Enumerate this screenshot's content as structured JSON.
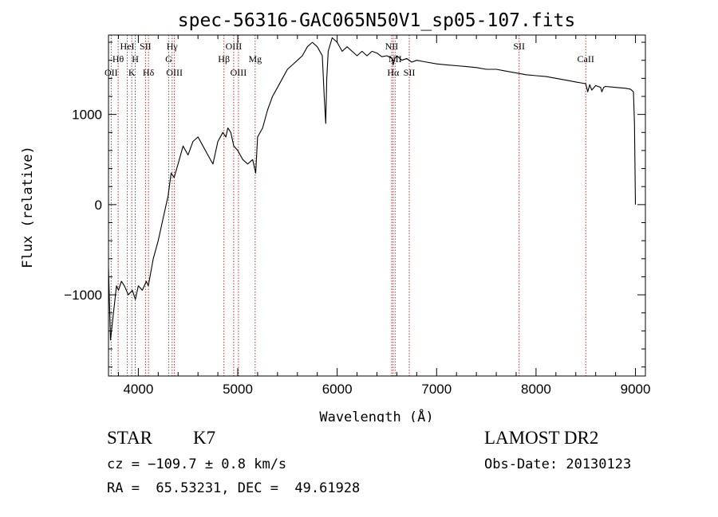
{
  "chart_data": {
    "type": "line",
    "title": "spec-56316-GAC065N50V1_sp05-107.fits",
    "xlabel": "Wavelength (Å)",
    "ylabel": "Flux (relative)",
    "xlim": [
      3700,
      9100
    ],
    "ylim": [
      -1900,
      1880
    ],
    "xticks": [
      4000,
      5000,
      6000,
      7000,
      8000,
      9000
    ],
    "yticks": [
      -1000,
      0,
      1000
    ],
    "grid": false,
    "series": [
      {
        "x": [
          3700,
          3720,
          3740,
          3760,
          3780,
          3800,
          3830,
          3860,
          3900,
          3940,
          3970,
          4000,
          4040,
          4080,
          4100,
          4150,
          4200,
          4250,
          4300,
          4330,
          4360,
          4400,
          4450,
          4500,
          4550,
          4600,
          4650,
          4700,
          4750,
          4800,
          4850,
          4880,
          4900,
          4930,
          4960,
          5000,
          5050,
          5100,
          5150,
          5180,
          5200,
          5250,
          5300,
          5350,
          5400,
          5450,
          5500,
          5550,
          5600,
          5650,
          5700,
          5750,
          5800,
          5850,
          5870,
          5885,
          5895,
          5910,
          5950,
          6000,
          6050,
          6100,
          6150,
          6200,
          6250,
          6300,
          6350,
          6400,
          6450,
          6500,
          6550,
          6563,
          6580,
          6600,
          6650,
          6700,
          6750,
          6800,
          6900,
          7000,
          7100,
          7200,
          7300,
          7400,
          7500,
          7600,
          7700,
          7800,
          7900,
          8000,
          8100,
          8200,
          8300,
          8400,
          8450,
          8500,
          8520,
          8540,
          8560,
          8600,
          8650,
          8662,
          8680,
          8700,
          8800,
          8900,
          8950,
          8980,
          8990,
          9000
        ],
        "y": [
          -700,
          -1500,
          -1300,
          -1100,
          -900,
          -950,
          -850,
          -900,
          -1000,
          -950,
          -1050,
          -900,
          -950,
          -850,
          -900,
          -600,
          -400,
          -150,
          100,
          350,
          300,
          450,
          650,
          550,
          700,
          750,
          650,
          550,
          450,
          700,
          800,
          750,
          850,
          800,
          650,
          600,
          500,
          450,
          500,
          350,
          750,
          850,
          1050,
          1200,
          1300,
          1400,
          1500,
          1550,
          1600,
          1650,
          1750,
          1800,
          1750,
          1650,
          1200,
          900,
          1400,
          1700,
          1850,
          1800,
          1700,
          1750,
          1700,
          1650,
          1700,
          1650,
          1700,
          1680,
          1640,
          1650,
          1620,
          1550,
          1620,
          1650,
          1600,
          1620,
          1580,
          1600,
          1580,
          1560,
          1550,
          1540,
          1530,
          1520,
          1500,
          1500,
          1480,
          1460,
          1440,
          1430,
          1420,
          1400,
          1380,
          1360,
          1350,
          1340,
          1250,
          1330,
          1270,
          1320,
          1300,
          1250,
          1300,
          1310,
          1300,
          1290,
          1280,
          1250,
          900,
          0
        ]
      }
    ],
    "line_markers": [
      {
        "label": "OII",
        "wavelength": 3727,
        "row": 3
      },
      {
        "label": "Hθ",
        "wavelength": 3797,
        "row": 2
      },
      {
        "label": "HeI",
        "wavelength": 3889,
        "row": 1
      },
      {
        "label": "K",
        "wavelength": 3934,
        "row": 3
      },
      {
        "label": "H",
        "wavelength": 3969,
        "row": 2
      },
      {
        "label": "SII",
        "wavelength": 4072,
        "row": 1
      },
      {
        "label": "Hδ",
        "wavelength": 4102,
        "row": 3
      },
      {
        "label": "Hγ",
        "wavelength": 4340,
        "row": 1
      },
      {
        "label": "G",
        "wavelength": 4305,
        "row": 2
      },
      {
        "label": "OIII",
        "wavelength": 4363,
        "row": 3
      },
      {
        "label": "Hβ",
        "wavelength": 4861,
        "row": 2
      },
      {
        "label": "OIII",
        "wavelength": 4959,
        "row": 1
      },
      {
        "label": "OIII",
        "wavelength": 5007,
        "row": 3
      },
      {
        "label": "Mg",
        "wavelength": 5175,
        "row": 2
      },
      {
        "label": "NII",
        "wavelength": 6548,
        "row": 1
      },
      {
        "label": "NII",
        "wavelength": 6583,
        "row": 2
      },
      {
        "label": "Hα",
        "wavelength": 6563,
        "row": 3
      },
      {
        "label": "SII",
        "wavelength": 6725,
        "row": 3
      },
      {
        "label": "SII",
        "wavelength": 7830,
        "row": 1
      },
      {
        "label": "CaII",
        "wavelength": 8500,
        "row": 2
      }
    ],
    "marker_color": "#b03030"
  },
  "info": {
    "class_label": "STAR",
    "subclass_label": "K7",
    "cz": "cz = −109.7 ± 0.8 km/s",
    "coords": "RA =  65.53231, DEC =  49.61928",
    "survey": "LAMOST DR2",
    "obs_date": "Obs-Date: 20130123"
  }
}
